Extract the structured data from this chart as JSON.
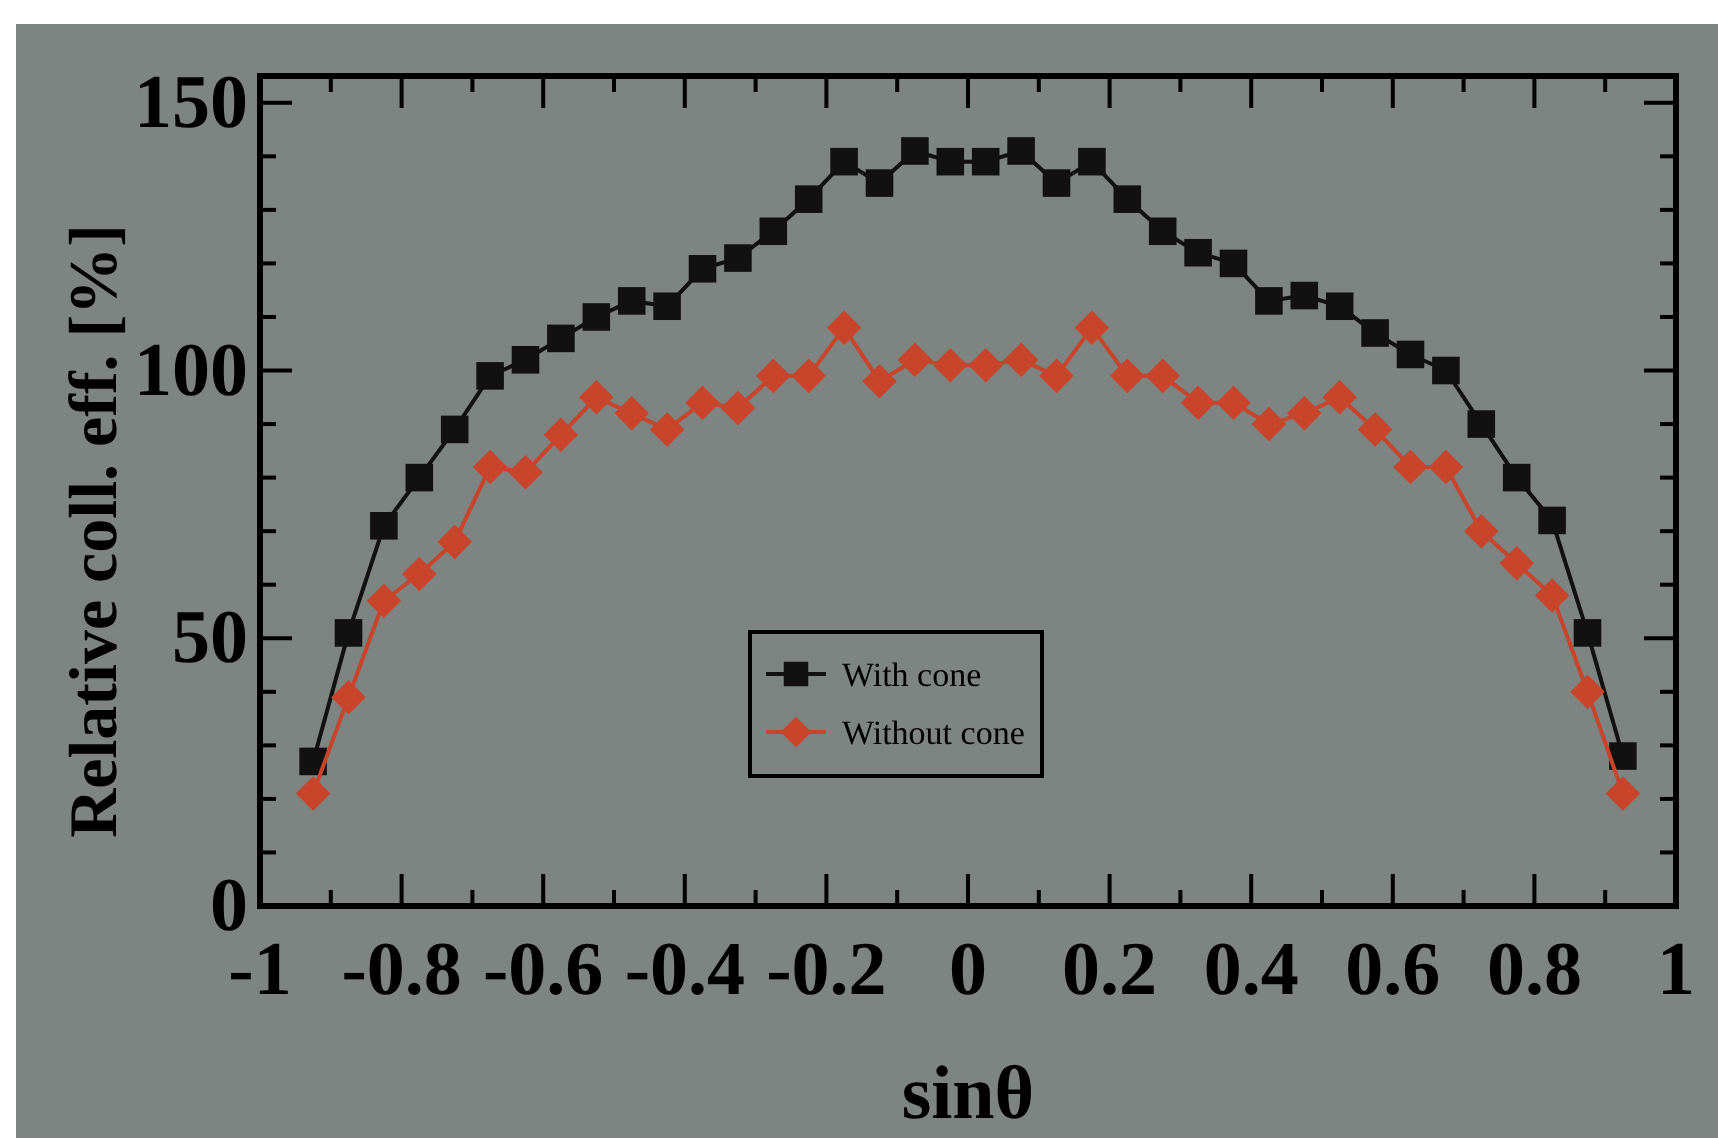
{
  "chart_data": {
    "type": "line",
    "xlabel": "sinθ",
    "ylabel": "Relative coll. eff. [%]",
    "x": [
      -0.925,
      -0.875,
      -0.825,
      -0.775,
      -0.725,
      -0.675,
      -0.625,
      -0.575,
      -0.525,
      -0.475,
      -0.425,
      -0.375,
      -0.325,
      -0.275,
      -0.225,
      -0.175,
      -0.125,
      -0.075,
      -0.025,
      0.025,
      0.075,
      0.125,
      0.175,
      0.225,
      0.275,
      0.325,
      0.375,
      0.425,
      0.475,
      0.525,
      0.575,
      0.625,
      0.675,
      0.725,
      0.775,
      0.825,
      0.875,
      0.925
    ],
    "series": [
      {
        "name": "With cone",
        "color": "#111111",
        "marker": "square",
        "values": [
          27,
          51,
          71,
          80,
          89,
          99,
          102,
          106,
          110,
          113,
          112,
          119,
          121,
          126,
          132,
          139,
          135,
          141,
          139,
          139,
          141,
          135,
          139,
          132,
          126,
          122,
          120,
          113,
          114,
          112,
          107,
          103,
          100,
          90,
          80,
          72,
          51,
          28
        ]
      },
      {
        "name": "Without cone",
        "color": "#c8442a",
        "marker": "diamond",
        "values": [
          21,
          39,
          57,
          62,
          68,
          82,
          81,
          88,
          95,
          92,
          89,
          94,
          93,
          99,
          99,
          108,
          98,
          102,
          101,
          101,
          102,
          99,
          108,
          99,
          99,
          94,
          94,
          90,
          92,
          95,
          89,
          82,
          82,
          70,
          64,
          58,
          40,
          21
        ]
      }
    ],
    "xlim": [
      -1,
      1
    ],
    "xticks": [
      -1,
      {
        "value": -0.9,
        "label": null
      },
      -0.8,
      {
        "value": -0.7,
        "label": null
      },
      -0.6,
      {
        "value": -0.5,
        "label": null
      },
      -0.4,
      {
        "value": -0.3,
        "label": null
      },
      -0.2,
      {
        "value": -0.1,
        "label": null
      },
      0,
      {
        "value": 0.1,
        "label": null
      },
      0.2,
      {
        "value": 0.3,
        "label": null
      },
      0.4,
      {
        "value": 0.5,
        "label": null
      },
      0.6,
      {
        "value": 0.7,
        "label": null
      },
      0.8,
      {
        "value": 0.9,
        "label": null
      },
      1
    ],
    "ylim": [
      0,
      155
    ],
    "yticks": [
      0,
      {
        "value": 10,
        "label": null
      },
      {
        "value": 20,
        "label": null
      },
      {
        "value": 30,
        "label": null
      },
      {
        "value": 40,
        "label": null
      },
      50,
      {
        "value": 60,
        "label": null
      },
      {
        "value": 70,
        "label": null
      },
      {
        "value": 80,
        "label": null
      },
      {
        "value": 90,
        "label": null
      },
      100,
      {
        "value": 110,
        "label": null
      },
      {
        "value": 120,
        "label": null
      },
      {
        "value": 130,
        "label": null
      },
      {
        "value": 140,
        "label": null
      },
      150
    ],
    "grid": false,
    "legend": "center",
    "line_style": "solid"
  }
}
